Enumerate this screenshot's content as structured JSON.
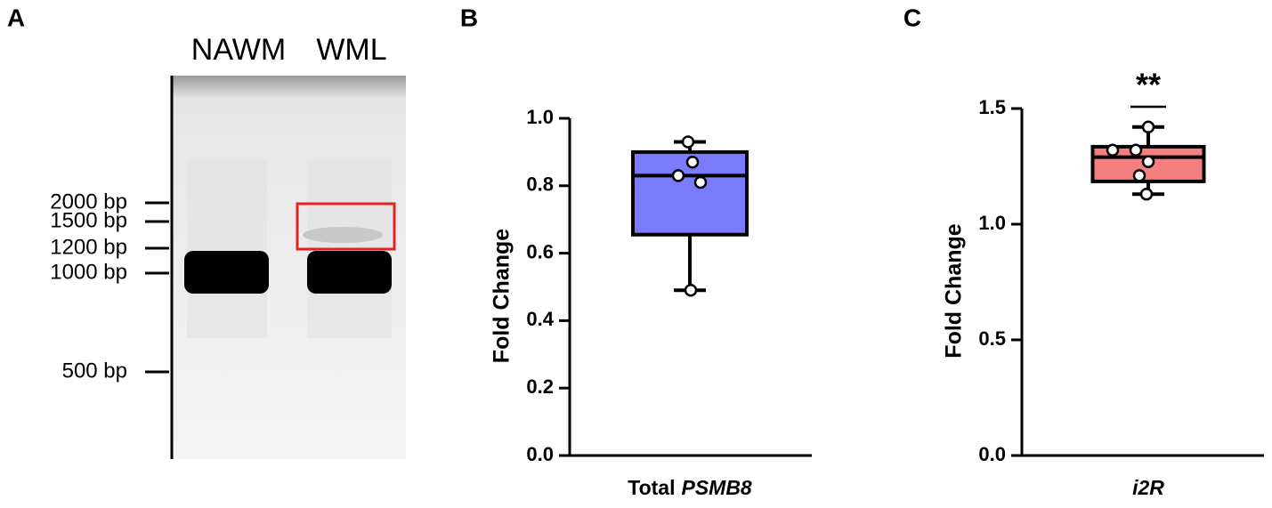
{
  "gel": {
    "panel_label": "A",
    "lanes": [
      "NAWM",
      "WML"
    ],
    "ladder": [
      "2000 bp",
      "1500 bp",
      "1200 bp",
      "1000 bp",
      "500 bp"
    ]
  },
  "chart_data": [
    {
      "type": "box",
      "panel_label": "B",
      "y_label": "Fold Change",
      "x_label_parts": [
        {
          "text": "Total",
          "italic": false
        },
        {
          "text": "PSMB8",
          "italic": true
        }
      ],
      "color": "#7b7bff",
      "box": {
        "whisker_low": 0.49,
        "q1": 0.655,
        "median": 0.83,
        "q3": 0.9,
        "whisker_high": 0.93
      },
      "points": [
        0.93,
        0.87,
        0.83,
        0.81,
        0.49
      ],
      "ylim": [
        0,
        1.0
      ],
      "yticks": [
        {
          "value": 0,
          "label": "0.0"
        },
        0.2,
        0.4,
        0.6,
        0.8,
        {
          "value": 1,
          "label": "1.0"
        }
      ]
    },
    {
      "type": "box",
      "panel_label": "C",
      "y_label": "Fold Change",
      "x_label_parts": [
        {
          "text": "i2R",
          "italic": true
        }
      ],
      "color": "#f57f7f",
      "annotation": "**",
      "box": {
        "whisker_low": 1.13,
        "q1": 1.185,
        "median": 1.29,
        "q3": 1.335,
        "whisker_high": 1.42
      },
      "points": [
        1.42,
        1.32,
        1.32,
        1.27,
        1.21,
        1.13
      ],
      "ylim": [
        0,
        1.5
      ],
      "yticks": [
        {
          "value": 0,
          "label": "0.0"
        },
        0.5,
        {
          "value": 1,
          "label": "1.0"
        },
        1.5
      ]
    }
  ]
}
